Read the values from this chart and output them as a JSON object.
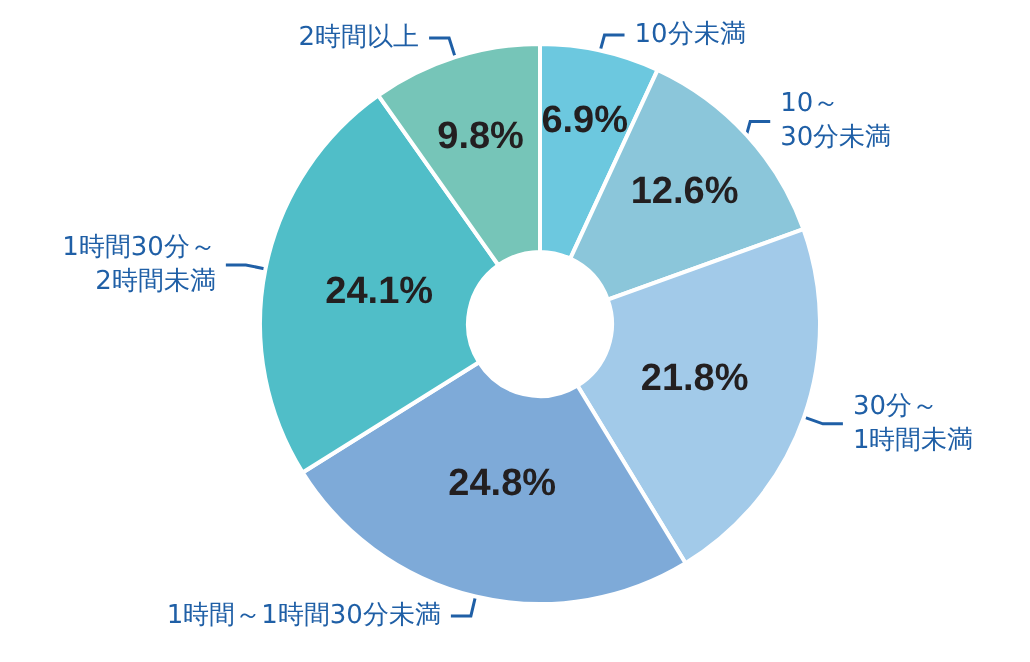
{
  "chart_data": {
    "type": "donut",
    "categories": [
      "10分未満",
      "10～30分未満",
      "30分～1時間未満",
      "1時間～1時間30分未満",
      "1時間30分～2時間未満",
      "2時間以上"
    ],
    "values": [
      6.9,
      12.6,
      21.8,
      24.8,
      24.1,
      9.8
    ],
    "colors": [
      "#6cc8df",
      "#8bc6da",
      "#a2cae9",
      "#7eaad8",
      "#50bec8",
      "#76c5b8"
    ],
    "value_labels": [
      "6.9%",
      "12.6%",
      "21.8%",
      "24.8%",
      "24.1%",
      "9.8%"
    ],
    "legend": false
  }
}
